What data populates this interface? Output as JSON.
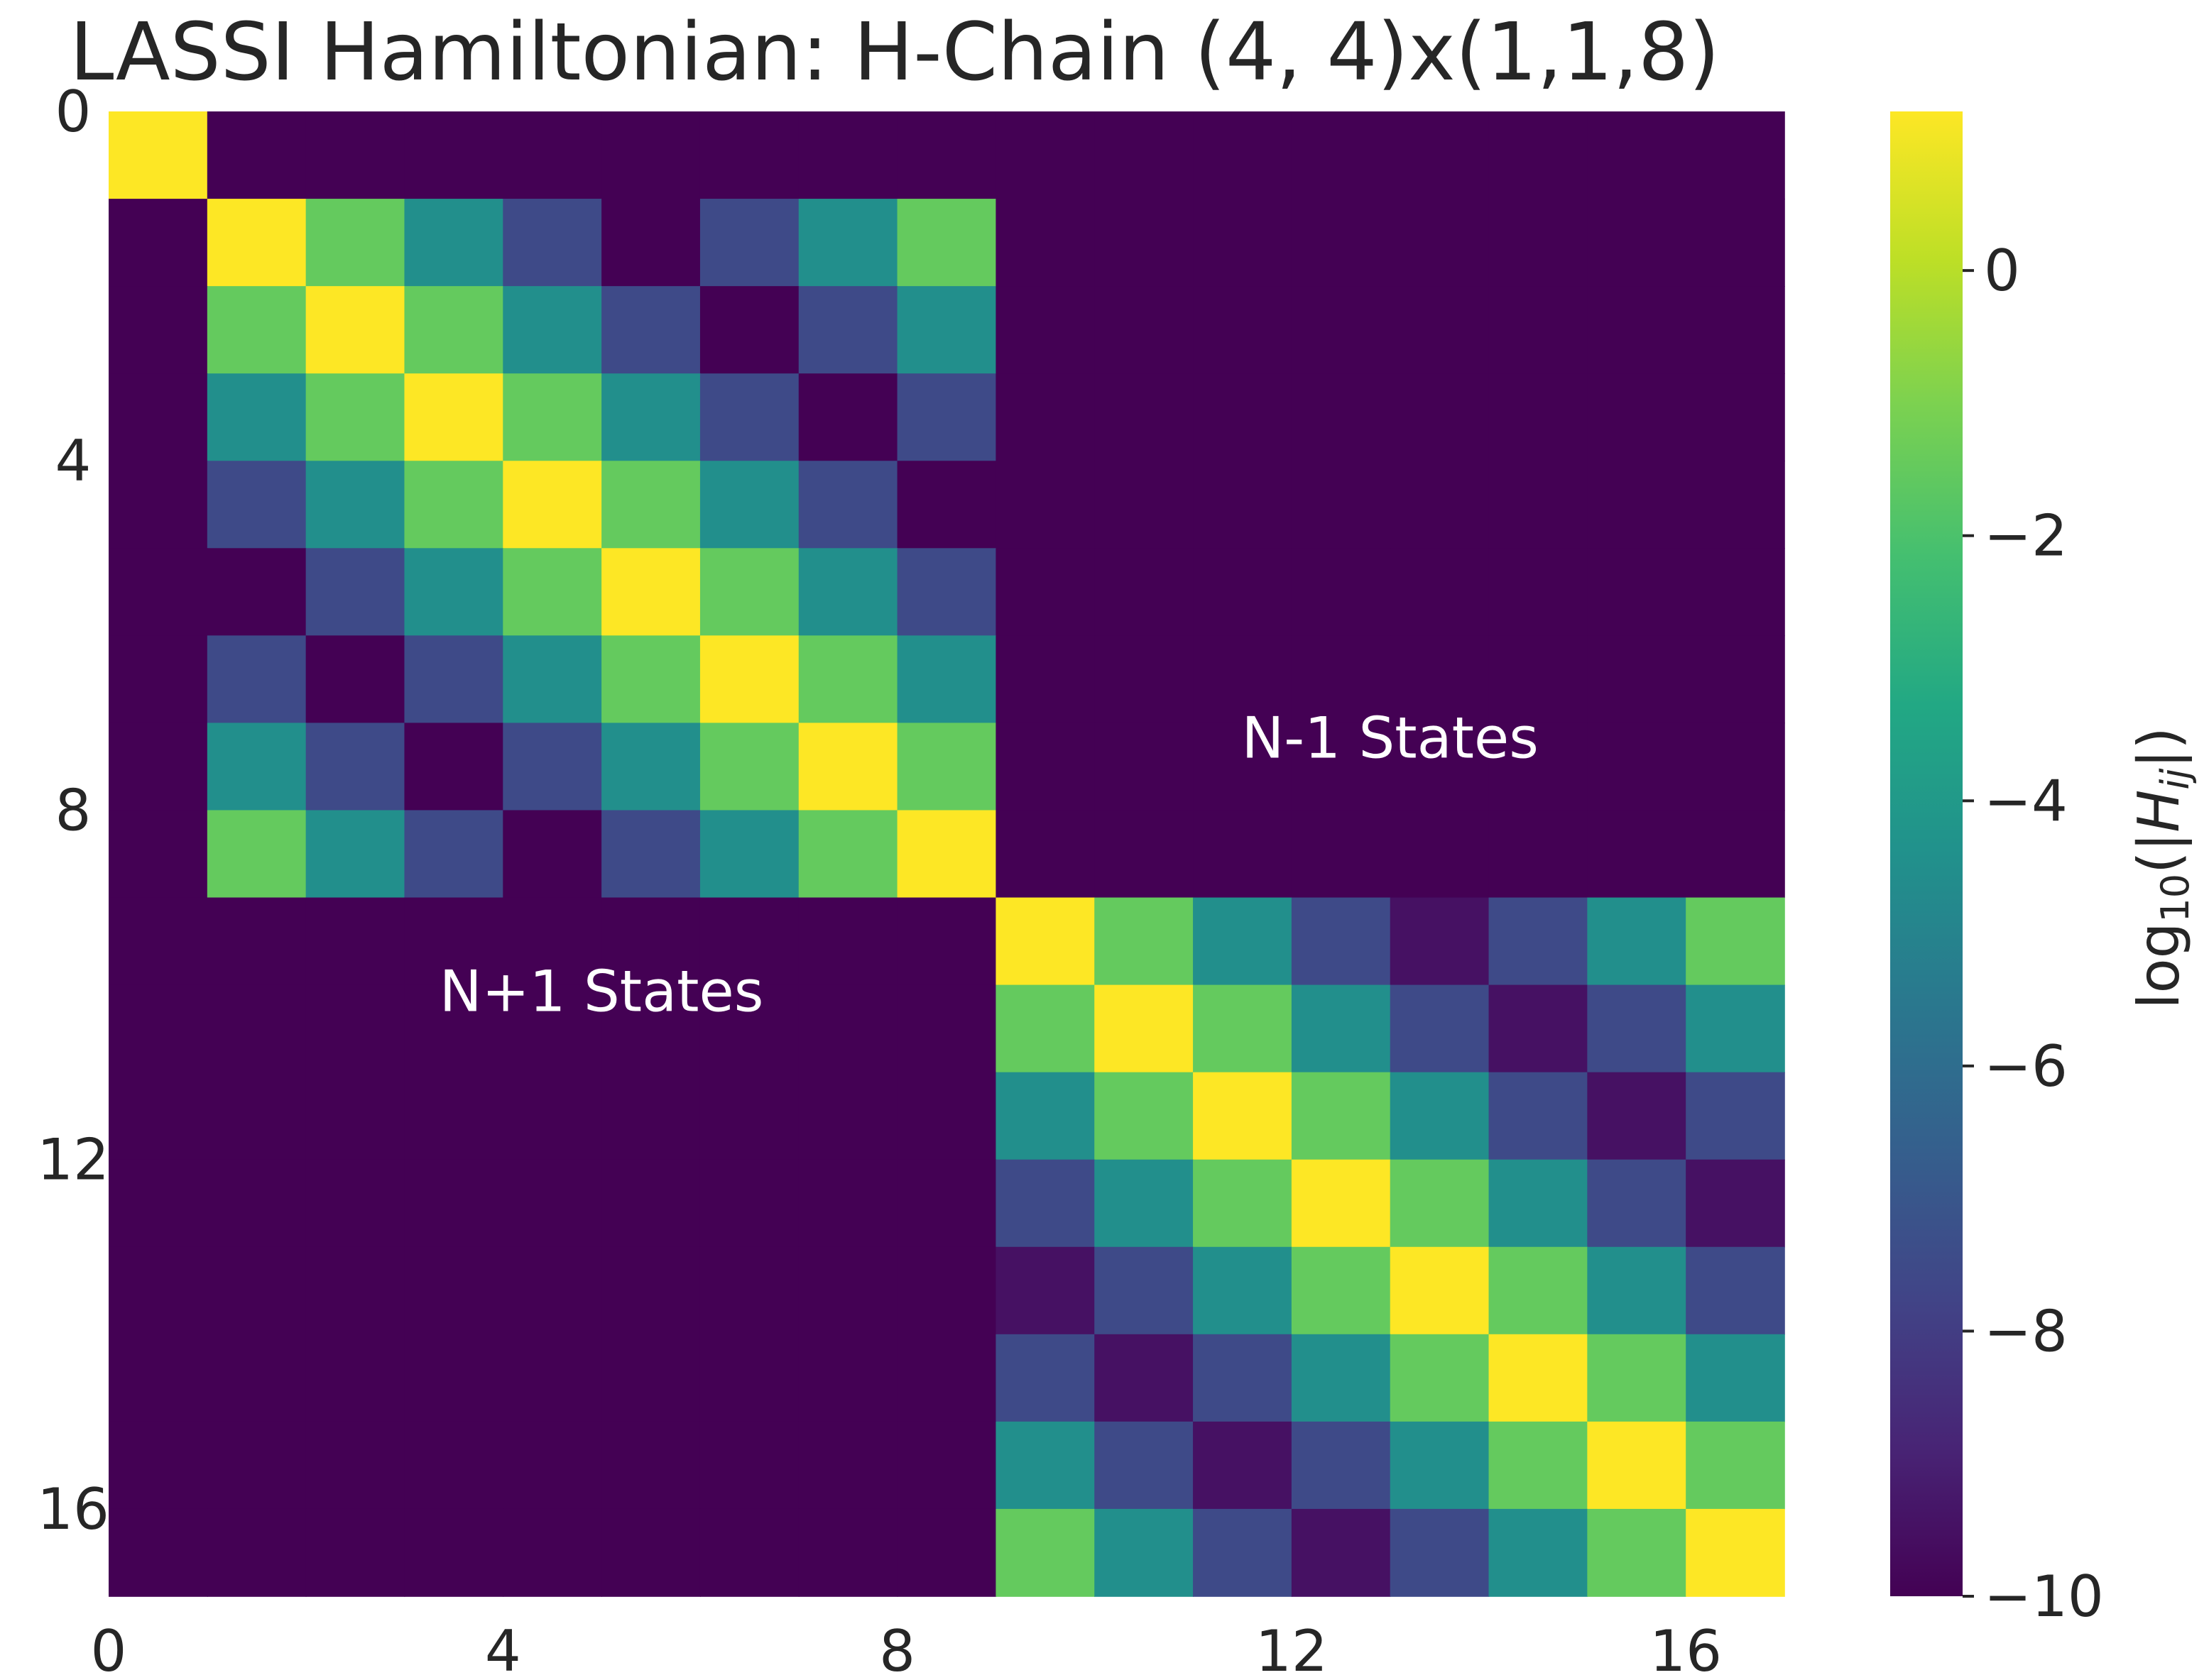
{
  "chart_data": {
    "type": "heatmap",
    "title": "LASSI Hamiltonian: H-Chain (4, 4)x(1,1,8)",
    "xlabel": "",
    "ylabel": "",
    "n": 17,
    "x_ticks": [
      0,
      4,
      8,
      12,
      16
    ],
    "y_ticks": [
      0,
      4,
      8,
      12,
      16
    ],
    "colorbar": {
      "label_text": "log",
      "label_sub": "10",
      "label_open": "(|",
      "label_var": "H",
      "label_var_sub": "ij",
      "label_close": "|)",
      "range": [
        -10,
        1.2
      ],
      "ticks": [
        "0",
        "−2",
        "−4",
        "−6",
        "−8",
        "−10"
      ],
      "tick_values": [
        0,
        -2,
        -4,
        -6,
        -8,
        -10
      ],
      "colormap": "viridis"
    },
    "annotations": [
      {
        "text": "N+1 States",
        "x": 5,
        "y": 10.3
      },
      {
        "text": "N-1 States",
        "x": 13,
        "y": 7.4
      }
    ],
    "blocks": [
      {
        "start": 0,
        "size": 1,
        "profile": [
          1.2
        ]
      },
      {
        "start": 1,
        "size": 8,
        "profile": [
          1.2,
          -1.5,
          -4.5,
          -7.5,
          -10,
          -7.5,
          -4.5,
          -1.5
        ]
      },
      {
        "start": 9,
        "size": 8,
        "profile": [
          1.2,
          -1.5,
          -4.5,
          -7.5,
          -9.5,
          -7.5,
          -4.5,
          -1.5
        ]
      }
    ],
    "background_value": -10
  }
}
